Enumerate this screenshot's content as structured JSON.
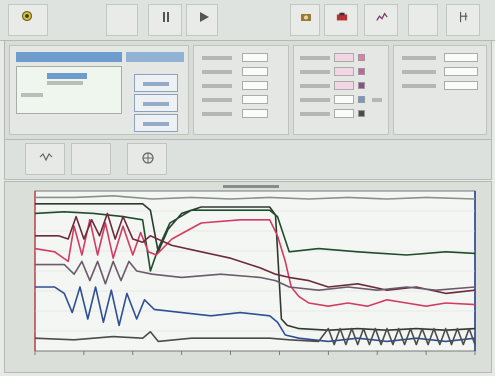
{
  "toolbar": {
    "buttons": [
      {
        "icon": "app-logo-icon",
        "x": 10,
        "w": 40
      },
      {
        "icon": "blank-icon",
        "x": 106,
        "w": 32
      },
      {
        "icon": "pause-icon",
        "x": 148,
        "w": 34
      },
      {
        "icon": "play-icon",
        "x": 186,
        "w": 32
      },
      {
        "icon": "camera-icon",
        "x": 290,
        "w": 30
      },
      {
        "icon": "record-icon",
        "x": 324,
        "w": 34
      },
      {
        "icon": "chart-icon",
        "x": 364,
        "w": 34
      },
      {
        "icon": "blank-icon",
        "x": 408,
        "w": 30
      },
      {
        "icon": "settings-icon",
        "x": 446,
        "w": 34
      }
    ]
  },
  "panel": {
    "colors": {
      "accent": "#6e9ccc",
      "pink": "#e67aa8"
    }
  },
  "chart_data": {
    "type": "line",
    "title": "",
    "xlabel": "",
    "ylabel": "",
    "xlim": [
      0,
      450
    ],
    "ylim": [
      0,
      100
    ],
    "grid": true,
    "series": [
      {
        "color": "#2f3a2f",
        "points": [
          [
            0,
            92
          ],
          [
            110,
            92
          ],
          [
            118,
            88
          ],
          [
            126,
            62
          ],
          [
            136,
            76
          ],
          [
            150,
            86
          ],
          [
            170,
            90
          ],
          [
            240,
            90
          ],
          [
            246,
            85
          ],
          [
            252,
            20
          ],
          [
            258,
            16
          ],
          [
            270,
            14
          ],
          [
            300,
            13
          ],
          [
            330,
            14
          ],
          [
            360,
            13
          ],
          [
            390,
            14
          ],
          [
            420,
            13
          ],
          [
            450,
            14
          ]
        ]
      },
      {
        "color": "#1f4d2a",
        "points": [
          [
            0,
            86
          ],
          [
            30,
            87
          ],
          [
            60,
            86
          ],
          [
            90,
            84
          ],
          [
            110,
            82
          ],
          [
            118,
            50
          ],
          [
            126,
            64
          ],
          [
            138,
            80
          ],
          [
            160,
            88
          ],
          [
            200,
            88
          ],
          [
            240,
            88
          ],
          [
            248,
            84
          ],
          [
            260,
            62
          ],
          [
            290,
            64
          ],
          [
            330,
            62
          ],
          [
            380,
            60
          ],
          [
            420,
            62
          ],
          [
            450,
            61
          ]
        ]
      },
      {
        "color": "#d23b62",
        "points": [
          [
            0,
            64
          ],
          [
            20,
            62
          ],
          [
            34,
            56
          ],
          [
            40,
            78
          ],
          [
            48,
            60
          ],
          [
            56,
            82
          ],
          [
            64,
            60
          ],
          [
            72,
            80
          ],
          [
            80,
            58
          ],
          [
            90,
            78
          ],
          [
            100,
            60
          ],
          [
            108,
            74
          ],
          [
            116,
            62
          ],
          [
            124,
            60
          ],
          [
            140,
            70
          ],
          [
            170,
            80
          ],
          [
            210,
            82
          ],
          [
            240,
            82
          ],
          [
            248,
            72
          ],
          [
            256,
            56
          ],
          [
            262,
            40
          ],
          [
            270,
            34
          ],
          [
            280,
            30
          ],
          [
            300,
            28
          ],
          [
            320,
            30
          ],
          [
            340,
            28
          ],
          [
            360,
            32
          ],
          [
            380,
            30
          ],
          [
            400,
            28
          ],
          [
            420,
            30
          ],
          [
            450,
            29
          ]
        ]
      },
      {
        "color": "#6b2a3a",
        "points": [
          [
            0,
            72
          ],
          [
            24,
            72
          ],
          [
            34,
            70
          ],
          [
            42,
            84
          ],
          [
            50,
            70
          ],
          [
            58,
            82
          ],
          [
            66,
            72
          ],
          [
            74,
            86
          ],
          [
            82,
            70
          ],
          [
            90,
            84
          ],
          [
            100,
            70
          ],
          [
            110,
            68
          ],
          [
            118,
            72
          ],
          [
            140,
            66
          ],
          [
            170,
            62
          ],
          [
            200,
            58
          ],
          [
            230,
            52
          ],
          [
            246,
            48
          ],
          [
            260,
            46
          ],
          [
            280,
            44
          ],
          [
            300,
            40
          ],
          [
            330,
            42
          ],
          [
            360,
            38
          ],
          [
            390,
            40
          ],
          [
            420,
            36
          ],
          [
            450,
            38
          ]
        ]
      },
      {
        "color": "#2e4f93",
        "points": [
          [
            0,
            40
          ],
          [
            20,
            40
          ],
          [
            30,
            36
          ],
          [
            38,
            24
          ],
          [
            46,
            40
          ],
          [
            54,
            20
          ],
          [
            62,
            40
          ],
          [
            70,
            18
          ],
          [
            78,
            38
          ],
          [
            86,
            16
          ],
          [
            94,
            36
          ],
          [
            104,
            20
          ],
          [
            112,
            32
          ],
          [
            122,
            26
          ],
          [
            150,
            24
          ],
          [
            180,
            22
          ],
          [
            210,
            24
          ],
          [
            240,
            22
          ],
          [
            248,
            18
          ],
          [
            256,
            10
          ],
          [
            270,
            8
          ],
          [
            300,
            6
          ],
          [
            330,
            8
          ],
          [
            360,
            6
          ],
          [
            390,
            8
          ],
          [
            420,
            6
          ],
          [
            450,
            8
          ]
        ]
      },
      {
        "color": "#6a5a6a",
        "points": [
          [
            0,
            54
          ],
          [
            30,
            54
          ],
          [
            40,
            48
          ],
          [
            48,
            56
          ],
          [
            56,
            44
          ],
          [
            64,
            56
          ],
          [
            72,
            42
          ],
          [
            80,
            56
          ],
          [
            88,
            44
          ],
          [
            96,
            56
          ],
          [
            104,
            50
          ],
          [
            120,
            48
          ],
          [
            150,
            46
          ],
          [
            190,
            48
          ],
          [
            230,
            46
          ],
          [
            246,
            44
          ],
          [
            260,
            40
          ],
          [
            290,
            38
          ],
          [
            320,
            40
          ],
          [
            350,
            38
          ],
          [
            380,
            40
          ],
          [
            410,
            38
          ],
          [
            450,
            40
          ]
        ]
      },
      {
        "color": "#8a8f8a",
        "points": [
          [
            0,
            96
          ],
          [
            40,
            96
          ],
          [
            80,
            97
          ],
          [
            120,
            95
          ],
          [
            160,
            96
          ],
          [
            200,
            95
          ],
          [
            240,
            96
          ],
          [
            280,
            95
          ],
          [
            320,
            96
          ],
          [
            360,
            95
          ],
          [
            400,
            96
          ],
          [
            450,
            95
          ]
        ]
      },
      {
        "color": "#4b4b4b",
        "points": [
          [
            0,
            8
          ],
          [
            40,
            7
          ],
          [
            80,
            9
          ],
          [
            110,
            8
          ],
          [
            118,
            12
          ],
          [
            126,
            6
          ],
          [
            160,
            8
          ],
          [
            240,
            8
          ],
          [
            260,
            7
          ],
          [
            290,
            6
          ],
          [
            300,
            14
          ],
          [
            306,
            4
          ],
          [
            312,
            14
          ],
          [
            318,
            4
          ],
          [
            324,
            14
          ],
          [
            330,
            4
          ],
          [
            336,
            14
          ],
          [
            342,
            4
          ],
          [
            348,
            14
          ],
          [
            354,
            4
          ],
          [
            360,
            14
          ],
          [
            366,
            4
          ],
          [
            372,
            14
          ],
          [
            378,
            4
          ],
          [
            384,
            14
          ],
          [
            390,
            4
          ],
          [
            396,
            14
          ],
          [
            402,
            4
          ],
          [
            408,
            14
          ],
          [
            414,
            4
          ],
          [
            420,
            14
          ],
          [
            426,
            4
          ],
          [
            432,
            14
          ],
          [
            438,
            4
          ],
          [
            444,
            14
          ],
          [
            450,
            4
          ]
        ]
      }
    ]
  }
}
